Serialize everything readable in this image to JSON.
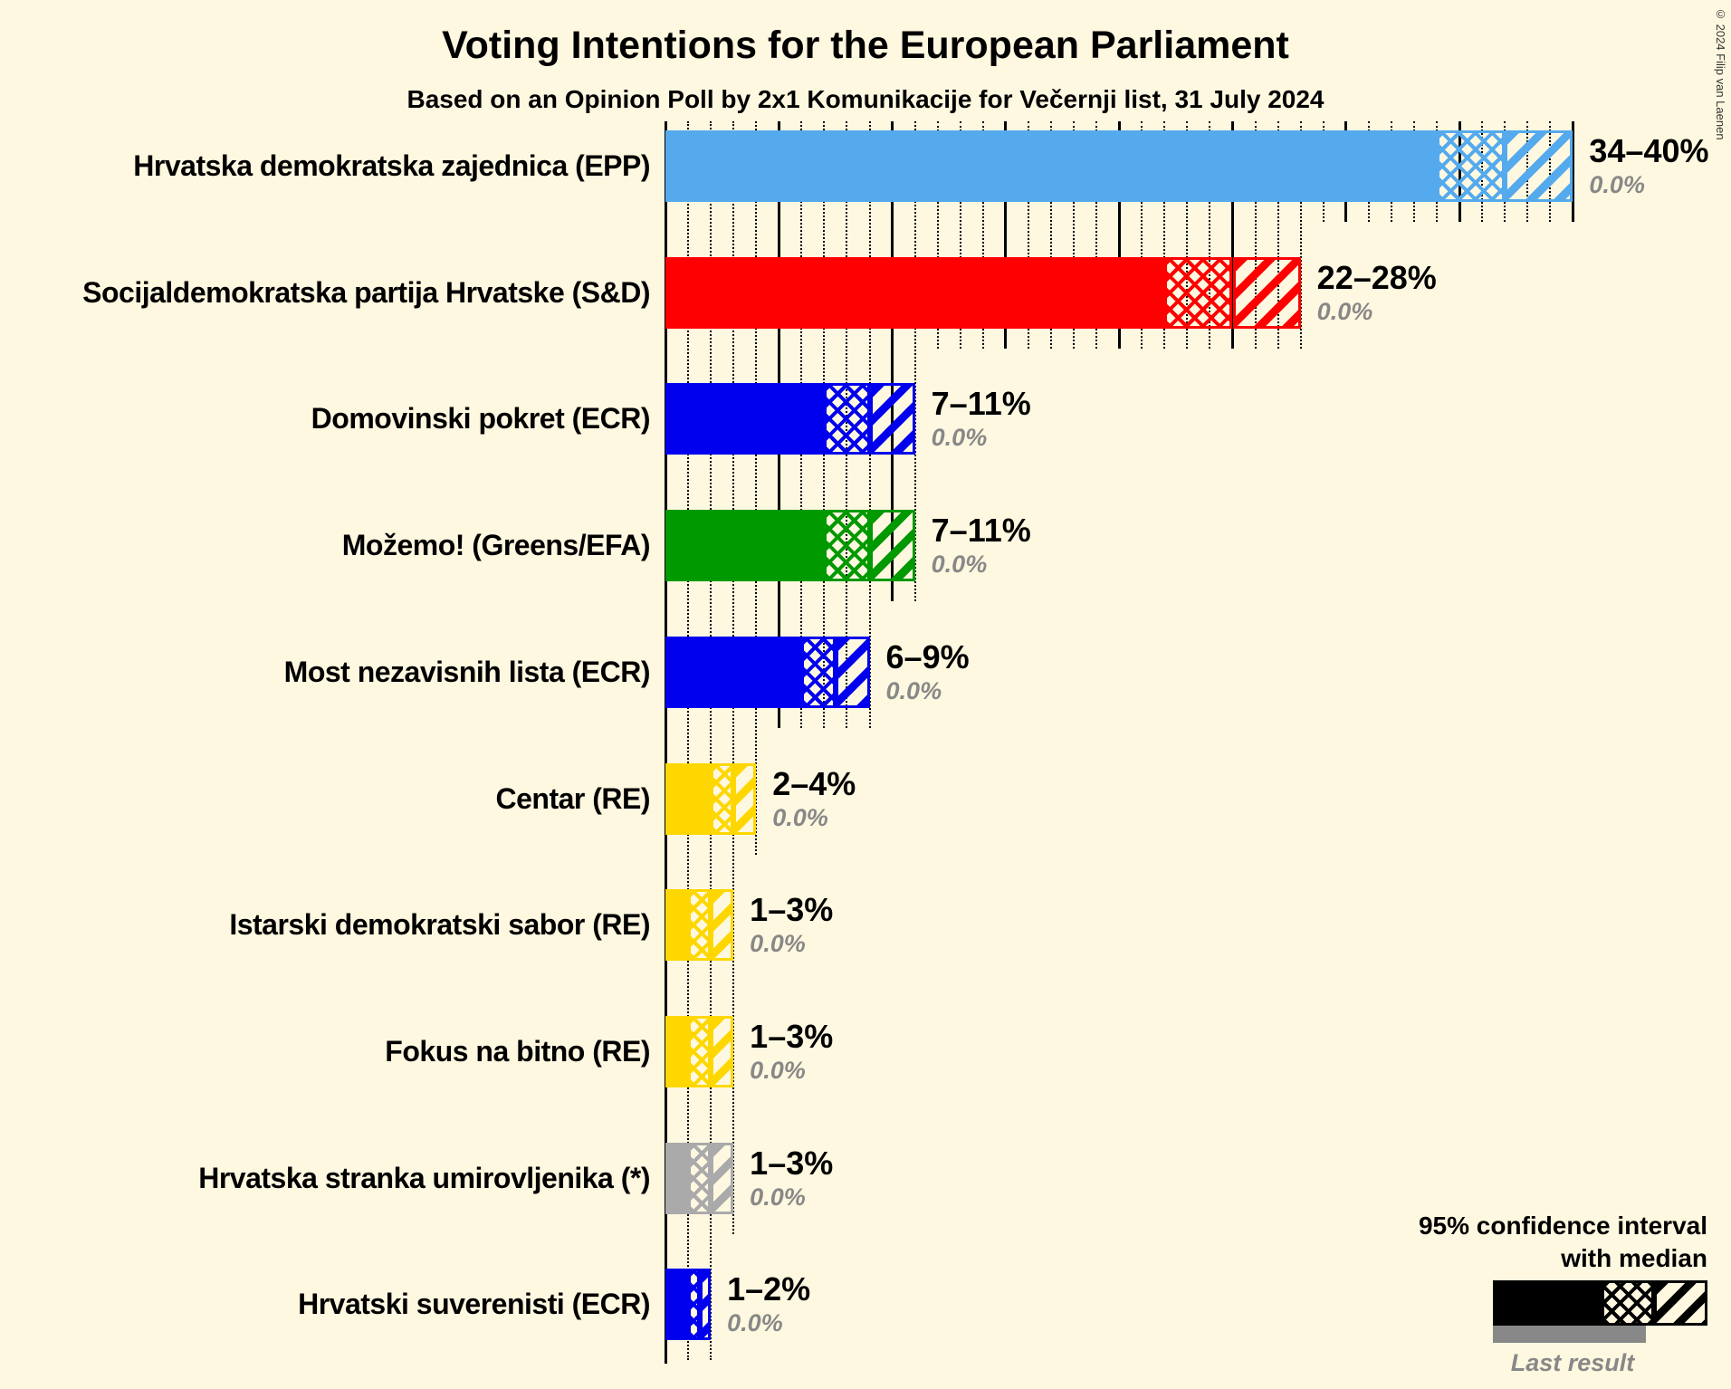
{
  "title": "Voting Intentions for the European Parliament",
  "subtitle": "Based on an Opinion Poll by 2x1 Komunikacije for Večernji list, 31 July 2024",
  "copyright_notice": "© 2024 Filip van Laenen",
  "legend": {
    "confidence_line1": "95% confidence interval",
    "confidence_line2": "with median",
    "last_result_label": "Last result"
  },
  "colors": {
    "background": "#fff8e0",
    "last_result_gray": "#888888",
    "gridline": "#000000"
  },
  "chart_data": {
    "type": "bar",
    "orientation": "horizontal",
    "unit": "percent",
    "x_axis": {
      "min": 0,
      "max": 40,
      "solid_line_step": 5,
      "dotted_line_step": 1
    },
    "parties": [
      {
        "label": "Hrvatska demokratska zajednica (EPP)",
        "ci_low": 34,
        "median": 37,
        "ci_high": 40,
        "ci_label": "34–40%",
        "last_result_label": "0.0%",
        "color": "#55aaee"
      },
      {
        "label": "Socijaldemokratska partija Hrvatske (S&D)",
        "ci_low": 22,
        "median": 25,
        "ci_high": 28,
        "ci_label": "22–28%",
        "last_result_label": "0.0%",
        "color": "#ff0000"
      },
      {
        "label": "Domovinski pokret (ECR)",
        "ci_low": 7,
        "median": 9,
        "ci_high": 11,
        "ci_label": "7–11%",
        "last_result_label": "0.0%",
        "color": "#0000ee"
      },
      {
        "label": "Možemo! (Greens/EFA)",
        "ci_low": 7,
        "median": 9,
        "ci_high": 11,
        "ci_label": "7–11%",
        "last_result_label": "0.0%",
        "color": "#009900"
      },
      {
        "label": "Most nezavisnih lista (ECR)",
        "ci_low": 6,
        "median": 7.5,
        "ci_high": 9,
        "ci_label": "6–9%",
        "last_result_label": "0.0%",
        "color": "#0000ee"
      },
      {
        "label": "Centar (RE)",
        "ci_low": 2,
        "median": 3,
        "ci_high": 4,
        "ci_label": "2–4%",
        "last_result_label": "0.0%",
        "color": "#ffd700"
      },
      {
        "label": "Istarski demokratski sabor (RE)",
        "ci_low": 1,
        "median": 2,
        "ci_high": 3,
        "ci_label": "1–3%",
        "last_result_label": "0.0%",
        "color": "#ffd700"
      },
      {
        "label": "Fokus na bitno (RE)",
        "ci_low": 1,
        "median": 2,
        "ci_high": 3,
        "ci_label": "1–3%",
        "last_result_label": "0.0%",
        "color": "#ffd700"
      },
      {
        "label": "Hrvatska stranka umirovljenika (*)",
        "ci_low": 1,
        "median": 2,
        "ci_high": 3,
        "ci_label": "1–3%",
        "last_result_label": "0.0%",
        "color": "#aaaaaa"
      },
      {
        "label": "Hrvatski suverenisti (ECR)",
        "ci_low": 1,
        "median": 1.5,
        "ci_high": 2,
        "ci_label": "1–2%",
        "last_result_label": "0.0%",
        "color": "#0000ee"
      }
    ]
  }
}
